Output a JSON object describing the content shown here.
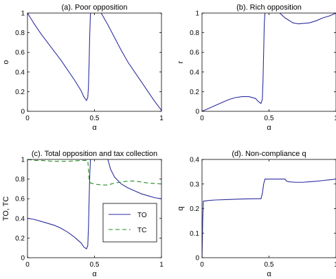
{
  "chart_data": [
    {
      "type": "line",
      "title": "(a). Poor opposition",
      "xlabel": "α",
      "ylabel": "o",
      "xlim": [
        0,
        1
      ],
      "ylim": [
        0,
        1
      ],
      "xticks": [
        0,
        0.5,
        1
      ],
      "yticks": [
        0,
        0.2,
        0.4,
        0.6,
        0.8,
        1
      ],
      "xtick_labels": [
        "0",
        "0.5",
        "1"
      ],
      "ytick_labels": [
        "0",
        "0.2",
        "0.4",
        "0.6",
        "0.8",
        "1"
      ],
      "grid": false,
      "series": [
        {
          "color": "#2b2b9e",
          "dash": "solid",
          "segments": [
            [
              [
                0,
                1
              ],
              [
                0.05,
                0.89
              ],
              [
                0.1,
                0.79
              ],
              [
                0.15,
                0.7
              ],
              [
                0.2,
                0.61
              ],
              [
                0.25,
                0.52
              ],
              [
                0.3,
                0.42
              ],
              [
                0.35,
                0.32
              ],
              [
                0.4,
                0.21
              ],
              [
                0.42,
                0.15
              ],
              [
                0.44,
                0.11
              ],
              [
                0.45,
                0.14
              ],
              [
                0.455,
                0.25
              ],
              [
                0.46,
                0.5
              ],
              [
                0.465,
                0.8
              ],
              [
                0.47,
                1
              ]
            ],
            [
              [
                0.55,
                1
              ],
              [
                0.6,
                0.88
              ],
              [
                0.65,
                0.75
              ],
              [
                0.7,
                0.62
              ],
              [
                0.75,
                0.5
              ],
              [
                0.8,
                0.4
              ],
              [
                0.85,
                0.3
              ],
              [
                0.9,
                0.2
              ],
              [
                0.95,
                0.1
              ],
              [
                1,
                0.01
              ]
            ]
          ]
        }
      ]
    },
    {
      "type": "line",
      "title": "(b). Rich opposition",
      "xlabel": "α",
      "ylabel": "r",
      "xlim": [
        0,
        1
      ],
      "ylim": [
        0,
        1
      ],
      "xticks": [
        0,
        0.5,
        1
      ],
      "yticks": [
        0,
        0.2,
        0.4,
        0.6,
        0.8,
        1
      ],
      "xtick_labels": [
        "0",
        "0.5",
        "1"
      ],
      "ytick_labels": [
        "0",
        "0.2",
        "0.4",
        "0.6",
        "0.8",
        "1"
      ],
      "grid": false,
      "series": [
        {
          "color": "#2b2b9e",
          "dash": "solid",
          "segments": [
            [
              [
                0,
                0
              ],
              [
                0.05,
                0.03
              ],
              [
                0.1,
                0.06
              ],
              [
                0.15,
                0.09
              ],
              [
                0.2,
                0.12
              ],
              [
                0.25,
                0.14
              ],
              [
                0.3,
                0.15
              ],
              [
                0.35,
                0.15
              ],
              [
                0.4,
                0.13
              ],
              [
                0.42,
                0.1
              ],
              [
                0.44,
                0.08
              ],
              [
                0.45,
                0.12
              ],
              [
                0.455,
                0.3
              ],
              [
                0.46,
                0.6
              ],
              [
                0.465,
                0.9
              ],
              [
                0.47,
                1
              ]
            ],
            [
              [
                0.58,
                1
              ],
              [
                0.62,
                0.95
              ],
              [
                0.68,
                0.9
              ],
              [
                0.72,
                0.89
              ],
              [
                0.8,
                0.9
              ],
              [
                0.85,
                0.92
              ],
              [
                0.9,
                0.95
              ],
              [
                0.95,
                0.97
              ],
              [
                1,
                1
              ]
            ]
          ]
        }
      ]
    },
    {
      "type": "line",
      "title": "(c). Total opposition and tax collection",
      "xlabel": "α",
      "ylabel": "TO, TC",
      "xlim": [
        0,
        1
      ],
      "ylim": [
        0,
        1
      ],
      "xticks": [
        0,
        0.5,
        1
      ],
      "yticks": [
        0,
        0.2,
        0.4,
        0.6,
        0.8,
        1
      ],
      "xtick_labels": [
        "0",
        "0.5",
        "1"
      ],
      "ytick_labels": [
        "0",
        "0.2",
        "0.4",
        "0.6",
        "0.8",
        "1"
      ],
      "grid": false,
      "legend": "center-right",
      "series": [
        {
          "name": "TO",
          "color": "#2b2b9e",
          "dash": "solid",
          "segments": [
            [
              [
                0,
                0.4
              ],
              [
                0.05,
                0.39
              ],
              [
                0.1,
                0.37
              ],
              [
                0.15,
                0.35
              ],
              [
                0.2,
                0.33
              ],
              [
                0.25,
                0.3
              ],
              [
                0.3,
                0.26
              ],
              [
                0.35,
                0.21
              ],
              [
                0.4,
                0.15
              ],
              [
                0.42,
                0.11
              ],
              [
                0.44,
                0.09
              ],
              [
                0.45,
                0.12
              ],
              [
                0.455,
                0.3
              ],
              [
                0.46,
                0.6
              ],
              [
                0.465,
                0.85
              ],
              [
                0.47,
                1
              ]
            ],
            [
              [
                0.6,
                1
              ],
              [
                0.62,
                0.9
              ],
              [
                0.65,
                0.82
              ],
              [
                0.7,
                0.75
              ],
              [
                0.75,
                0.71
              ],
              [
                0.8,
                0.68
              ],
              [
                0.85,
                0.65
              ],
              [
                0.9,
                0.63
              ],
              [
                0.95,
                0.61
              ],
              [
                1,
                0.6
              ]
            ]
          ]
        },
        {
          "name": "TC",
          "color": "#1e8c1e",
          "dash": "6,4",
          "segments": [
            [
              [
                0,
                1
              ],
              [
                0.05,
                0.99
              ],
              [
                0.1,
                0.99
              ],
              [
                0.2,
                0.98
              ],
              [
                0.3,
                0.98
              ],
              [
                0.4,
                0.99
              ],
              [
                0.44,
                0.99
              ],
              [
                0.45,
                0.99
              ],
              [
                0.455,
                0.9
              ],
              [
                0.46,
                0.8
              ],
              [
                0.47,
                0.76
              ],
              [
                0.5,
                0.75
              ],
              [
                0.55,
                0.74
              ],
              [
                0.6,
                0.74
              ],
              [
                0.65,
                0.76
              ],
              [
                0.7,
                0.77
              ],
              [
                0.75,
                0.78
              ],
              [
                0.8,
                0.78
              ],
              [
                0.85,
                0.77
              ],
              [
                0.9,
                0.76
              ],
              [
                1,
                0.75
              ]
            ]
          ]
        }
      ]
    },
    {
      "type": "line",
      "title": "(d). Non-compliance q",
      "xlabel": "α",
      "ylabel": "q",
      "xlim": [
        0,
        1
      ],
      "ylim": [
        0,
        0.4
      ],
      "xticks": [
        0,
        0.5,
        1
      ],
      "yticks": [
        0,
        0.1,
        0.2,
        0.3,
        0.4
      ],
      "xtick_labels": [
        "0",
        "0.5",
        "1"
      ],
      "ytick_labels": [
        "0",
        "0.1",
        "0.2",
        "0.3",
        "0.4"
      ],
      "grid": false,
      "series": [
        {
          "color": "#2b2b9e",
          "dash": "solid",
          "segments": [
            [
              [
                0,
                0
              ],
              [
                0.005,
                0.15
              ],
              [
                0.01,
                0.23
              ],
              [
                0.05,
                0.233
              ],
              [
                0.1,
                0.235
              ],
              [
                0.2,
                0.237
              ],
              [
                0.3,
                0.239
              ],
              [
                0.4,
                0.24
              ],
              [
                0.44,
                0.24
              ],
              [
                0.45,
                0.26
              ],
              [
                0.46,
                0.3
              ],
              [
                0.47,
                0.32
              ],
              [
                0.5,
                0.32
              ],
              [
                0.55,
                0.32
              ],
              [
                0.6,
                0.32
              ],
              [
                0.62,
                0.32
              ],
              [
                0.63,
                0.312
              ],
              [
                0.65,
                0.309
              ],
              [
                0.7,
                0.307
              ],
              [
                0.75,
                0.307
              ],
              [
                0.8,
                0.309
              ],
              [
                0.85,
                0.311
              ],
              [
                0.9,
                0.314
              ],
              [
                0.95,
                0.317
              ],
              [
                1,
                0.32
              ]
            ]
          ]
        }
      ]
    }
  ]
}
